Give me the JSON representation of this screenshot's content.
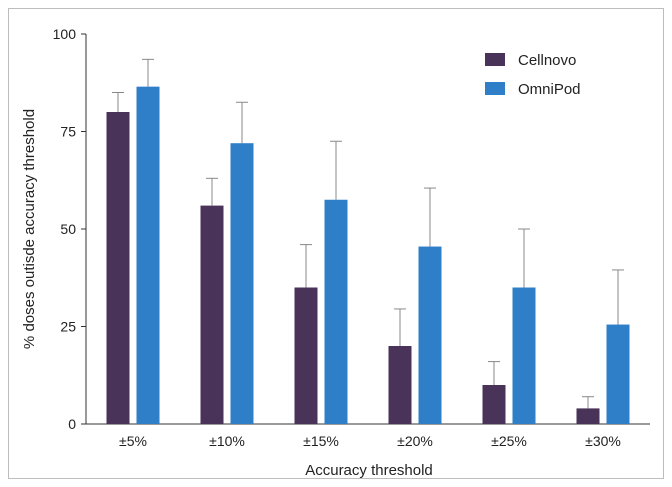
{
  "chart_data": {
    "type": "bar",
    "categories": [
      "±5%",
      "±10%",
      "±15%",
      "±20%",
      "±25%",
      "±30%"
    ],
    "series": [
      {
        "name": "Cellnovo",
        "color": "#4a3358",
        "values": [
          80,
          56,
          35,
          20,
          10,
          4
        ],
        "errors": [
          5,
          7,
          11,
          9.5,
          6,
          3
        ]
      },
      {
        "name": "OmniPod",
        "color": "#2f7fc8",
        "values": [
          86.5,
          72,
          57.5,
          45.5,
          35,
          25.5
        ],
        "errors": [
          7,
          10.5,
          15,
          15,
          15,
          14
        ]
      }
    ],
    "xlabel": "Accuracy threshold",
    "ylabel": "% doses outisde accuracy threshold",
    "ylim": [
      0,
      100
    ],
    "yticks": [
      0,
      25,
      50,
      75,
      100
    ],
    "legend": "top-right",
    "grid": false
  }
}
